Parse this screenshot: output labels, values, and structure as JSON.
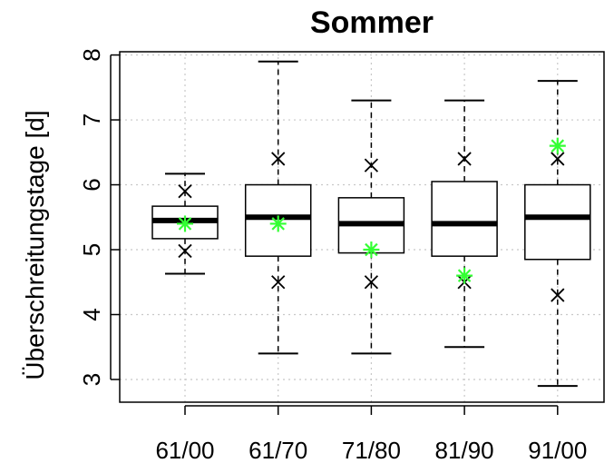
{
  "chart_data": {
    "type": "boxplot",
    "title": "Sommer",
    "ylabel": "Überschreitungstage [d]",
    "xlabel": "",
    "categories": [
      "61/00",
      "61/70",
      "71/80",
      "81/90",
      "91/00"
    ],
    "ylim": [
      2.65,
      8.05
    ],
    "yticks": [
      3,
      4,
      5,
      6,
      7,
      8
    ],
    "grid": true,
    "boxes": [
      {
        "category": "61/00",
        "whisker_low": 4.63,
        "q1": 5.17,
        "median": 5.45,
        "q3": 5.67,
        "whisker_high": 6.17,
        "x_marks": [
          5.9,
          4.98
        ],
        "green_star": 5.4
      },
      {
        "category": "61/70",
        "whisker_low": 3.4,
        "q1": 4.9,
        "median": 5.5,
        "q3": 6.0,
        "whisker_high": 7.9,
        "x_marks": [
          6.4,
          4.5
        ],
        "green_star": 5.4
      },
      {
        "category": "71/80",
        "whisker_low": 3.4,
        "q1": 4.95,
        "median": 5.4,
        "q3": 5.8,
        "whisker_high": 7.3,
        "x_marks": [
          6.3,
          4.5
        ],
        "green_star": 5.0
      },
      {
        "category": "81/90",
        "whisker_low": 3.5,
        "q1": 4.9,
        "median": 5.4,
        "q3": 6.05,
        "whisker_high": 7.3,
        "x_marks": [
          6.4,
          4.5
        ],
        "green_star": 4.6
      },
      {
        "category": "91/00",
        "whisker_low": 2.9,
        "q1": 4.85,
        "median": 5.5,
        "q3": 6.0,
        "whisker_high": 7.6,
        "x_marks": [
          6.4,
          4.3
        ],
        "green_star": 6.6
      }
    ],
    "colors": {
      "box": "#000000",
      "x_marker": "#000000",
      "star_marker": "#33ff33",
      "grid": "#c8c8c8"
    }
  }
}
